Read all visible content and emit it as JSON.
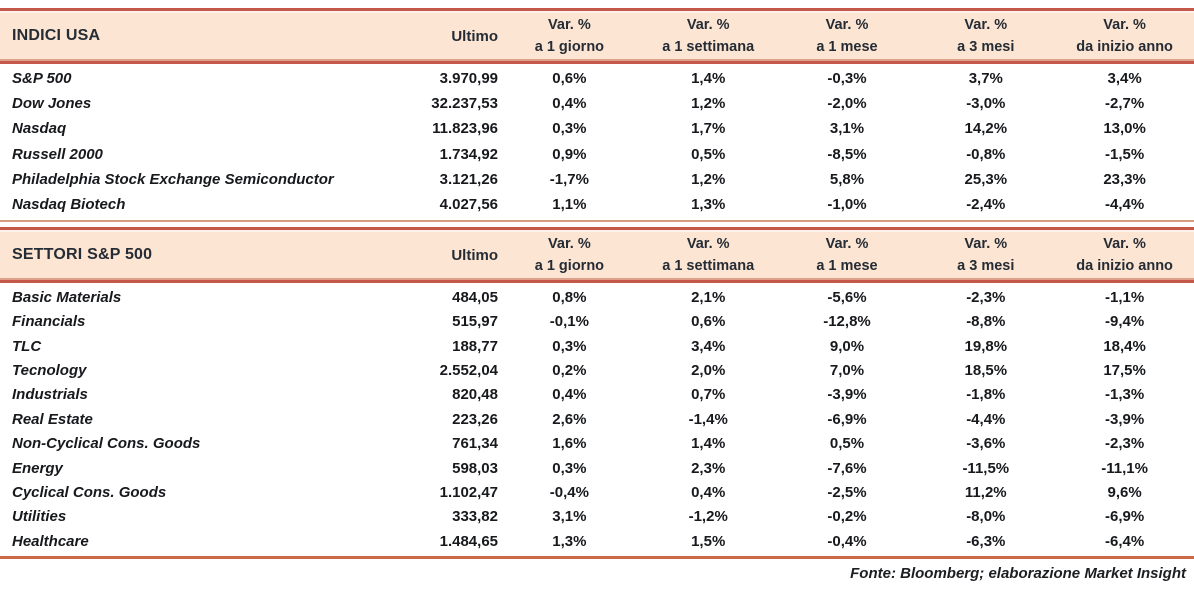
{
  "colors": {
    "header_bg": "#fce5d3",
    "rule_dark": "#c4584a",
    "rule_salmon": "#dda08a",
    "rule_tan": "#d59c82",
    "rule_orange": "#cc6a47",
    "header_text": "#252c35",
    "body_text": "#17191d"
  },
  "column_headers": {
    "ultimo": "Ultimo",
    "var_top": "Var. %",
    "periods": [
      "a 1 giorno",
      "a 1 settimana",
      "a 1 mese",
      "a 3 mesi",
      "da inizio anno"
    ]
  },
  "footer": {
    "text": "Fonte: Bloomberg; elaborazione Market Insight"
  },
  "chart_data": [
    {
      "type": "table",
      "title": "INDICI USA",
      "columns": [
        "",
        "Ultimo",
        "Var. % a 1 giorno",
        "Var. % a 1 settimana",
        "Var. % a 1 mese",
        "Var. % a 3 mesi",
        "Var. % da inizio anno"
      ],
      "rows": [
        [
          "S&P 500",
          "3.970,99",
          "0,6%",
          "1,4%",
          "-0,3%",
          "3,7%",
          "3,4%"
        ],
        [
          "Dow Jones",
          "32.237,53",
          "0,4%",
          "1,2%",
          "-2,0%",
          "-3,0%",
          "-2,7%"
        ],
        [
          "Nasdaq",
          "11.823,96",
          "0,3%",
          "1,7%",
          "3,1%",
          "14,2%",
          "13,0%"
        ],
        [
          "Russell 2000",
          "1.734,92",
          "0,9%",
          "0,5%",
          "-8,5%",
          "-0,8%",
          "-1,5%"
        ],
        [
          "Philadelphia Stock Exchange Semiconductor",
          "3.121,26",
          "-1,7%",
          "1,2%",
          "5,8%",
          "25,3%",
          "23,3%"
        ],
        [
          "Nasdaq Biotech",
          "4.027,56",
          "1,1%",
          "1,3%",
          "-1,0%",
          "-2,4%",
          "-4,4%"
        ]
      ]
    },
    {
      "type": "table",
      "title": "SETTORI S&P 500",
      "columns": [
        "",
        "Ultimo",
        "Var. % a 1 giorno",
        "Var. % a 1 settimana",
        "Var. % a 1 mese",
        "Var. % a 3 mesi",
        "Var. % da inizio anno"
      ],
      "rows": [
        [
          "Basic Materials",
          "484,05",
          "0,8%",
          "2,1%",
          "-5,6%",
          "-2,3%",
          "-1,1%"
        ],
        [
          "Financials",
          "515,97",
          "-0,1%",
          "0,6%",
          "-12,8%",
          "-8,8%",
          "-9,4%"
        ],
        [
          "TLC",
          "188,77",
          "0,3%",
          "3,4%",
          "9,0%",
          "19,8%",
          "18,4%"
        ],
        [
          "Tecnology",
          "2.552,04",
          "0,2%",
          "2,0%",
          "7,0%",
          "18,5%",
          "17,5%"
        ],
        [
          "Industrials",
          "820,48",
          "0,4%",
          "0,7%",
          "-3,9%",
          "-1,8%",
          "-1,3%"
        ],
        [
          "Real Estate",
          "223,26",
          "2,6%",
          "-1,4%",
          "-6,9%",
          "-4,4%",
          "-3,9%"
        ],
        [
          "Non-Cyclical Cons. Goods",
          "761,34",
          "1,6%",
          "1,4%",
          "0,5%",
          "-3,6%",
          "-2,3%"
        ],
        [
          "Energy",
          "598,03",
          "0,3%",
          "2,3%",
          "-7,6%",
          "-11,5%",
          "-11,1%"
        ],
        [
          "Cyclical Cons. Goods",
          "1.102,47",
          "-0,4%",
          "0,4%",
          "-2,5%",
          "11,2%",
          "9,6%"
        ],
        [
          "Utilities",
          "333,82",
          "3,1%",
          "-1,2%",
          "-0,2%",
          "-8,0%",
          "-6,9%"
        ],
        [
          "Healthcare",
          "1.484,65",
          "1,3%",
          "1,5%",
          "-0,4%",
          "-6,3%",
          "-6,4%"
        ]
      ]
    }
  ]
}
